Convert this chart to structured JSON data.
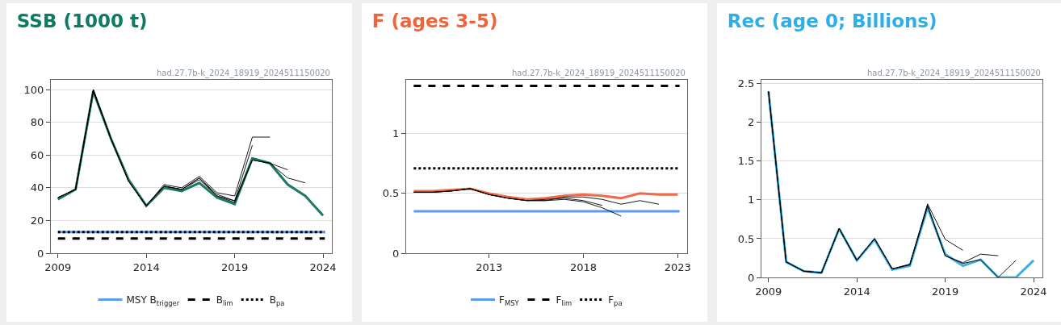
{
  "chart_data": [
    {
      "type": "line",
      "title": "SSB (1000 t)",
      "annotations": [
        "had.27.7b-k_2024_18919_2024511150020"
      ],
      "xlim": [
        2008.6,
        2024.5
      ],
      "xticks": [
        2009,
        2014,
        2019,
        2024
      ],
      "ylim": [
        0,
        106
      ],
      "yticks": [
        0,
        20,
        40,
        60,
        80,
        100
      ],
      "grid": "y",
      "legend": "bottom",
      "series": [
        {
          "color": "#1b7a66",
          "x": [
            2009,
            2010,
            2011,
            2012,
            2013,
            2014,
            2015,
            2016,
            2017,
            2018,
            2019,
            2020,
            2021,
            2022,
            2023,
            2024
          ],
          "values": [
            33,
            39,
            99,
            70,
            45,
            29,
            40,
            38,
            43,
            34,
            30,
            58,
            55,
            42,
            35,
            23
          ]
        },
        {
          "color": "#000000",
          "x": [
            2009,
            2010,
            2011,
            2012,
            2013,
            2014,
            2015,
            2016,
            2017,
            2018,
            2019,
            2020,
            2021,
            2022,
            2023
          ],
          "values": [
            34,
            39,
            99,
            70,
            44,
            29,
            41,
            39,
            45,
            35,
            31,
            57,
            55,
            46,
            43
          ]
        },
        {
          "color": "#000000",
          "x": [
            2009,
            2010,
            2011,
            2012,
            2013,
            2014,
            2015,
            2016,
            2017,
            2018,
            2019,
            2020,
            2021,
            2022
          ],
          "values": [
            34,
            39,
            100,
            70,
            44,
            29,
            41,
            39,
            46,
            35,
            32,
            57,
            55,
            51
          ]
        },
        {
          "color": "#000000",
          "x": [
            2009,
            2010,
            2011,
            2012,
            2013,
            2014,
            2015,
            2016,
            2017,
            2018,
            2019,
            2020,
            2021
          ],
          "values": [
            34,
            39,
            100,
            70,
            44,
            29,
            42,
            40,
            47,
            37,
            35,
            71,
            71
          ]
        },
        {
          "color": "#000000",
          "x": [
            2009,
            2010,
            2011,
            2012,
            2013,
            2014,
            2015,
            2016,
            2017,
            2018,
            2019,
            2020
          ],
          "values": [
            34,
            39,
            100,
            70,
            44,
            29,
            41,
            39,
            46,
            36,
            32,
            66
          ]
        }
      ],
      "ref_lines": [
        {
          "axis": "y",
          "value": 13,
          "label": "MSY B$_{trigger}$",
          "color": "#5b9bf0",
          "line_style": "solid"
        },
        {
          "axis": "y",
          "value": 9,
          "label": "B$_{lim}$",
          "color": "#000000",
          "line_style": "dashed"
        },
        {
          "axis": "y",
          "value": 13,
          "label": "B$_{pa}$",
          "color": "#000000",
          "line_style": "dotted"
        }
      ]
    },
    {
      "type": "line",
      "title": "F (ages 3-5)",
      "annotations": [
        "had.27.7b-k_2024_18919_2024511150020"
      ],
      "xlim": [
        2008.6,
        2023.5
      ],
      "xticks": [
        2013,
        2018,
        2023
      ],
      "ylim": [
        0,
        1.45
      ],
      "yticks": [
        0,
        0.5,
        1
      ],
      "grid": "y",
      "legend": "bottom",
      "series": [
        {
          "color": "#ee6a48",
          "x": [
            2009,
            2010,
            2011,
            2012,
            2013,
            2014,
            2015,
            2016,
            2017,
            2018,
            2019,
            2020,
            2021,
            2022,
            2023
          ],
          "values": [
            0.52,
            0.52,
            0.53,
            0.54,
            0.5,
            0.47,
            0.45,
            0.46,
            0.48,
            0.49,
            0.48,
            0.46,
            0.5,
            0.49,
            0.49
          ]
        },
        {
          "color": "#000000",
          "x": [
            2009,
            2010,
            2011,
            2012,
            2013,
            2014,
            2015,
            2016,
            2017,
            2018,
            2019,
            2020,
            2021,
            2022
          ],
          "values": [
            0.51,
            0.51,
            0.52,
            0.54,
            0.49,
            0.46,
            0.44,
            0.44,
            0.47,
            0.47,
            0.45,
            0.41,
            0.44,
            0.41
          ]
        },
        {
          "color": "#000000",
          "x": [
            2009,
            2010,
            2011,
            2012,
            2013,
            2014,
            2015,
            2016,
            2017,
            2018,
            2019,
            2020
          ],
          "values": [
            0.51,
            0.51,
            0.52,
            0.54,
            0.49,
            0.46,
            0.44,
            0.44,
            0.45,
            0.43,
            0.38,
            0.31
          ]
        },
        {
          "color": "#000000",
          "x": [
            2009,
            2010,
            2011,
            2012,
            2013,
            2014,
            2015,
            2016,
            2017,
            2018,
            2019
          ],
          "values": [
            0.51,
            0.51,
            0.52,
            0.54,
            0.49,
            0.46,
            0.44,
            0.45,
            0.46,
            0.44,
            0.4
          ]
        }
      ],
      "ref_lines": [
        {
          "axis": "y",
          "value": 0.35,
          "label": "F$_{MSY}$",
          "color": "#5b9bf0",
          "line_style": "solid"
        },
        {
          "axis": "y",
          "value": 1.4,
          "label": "F$_{lim}$",
          "color": "#000000",
          "line_style": "dashed"
        },
        {
          "axis": "y",
          "value": 0.71,
          "label": "F$_{pa}$",
          "color": "#000000",
          "line_style": "dotted"
        }
      ]
    },
    {
      "type": "line",
      "title": "Rec (age 0; Billions)",
      "annotations": [
        "had.27.7b-k_2024_18919_2024511150020"
      ],
      "xlim": [
        2008.6,
        2024.5
      ],
      "xticks": [
        2009,
        2014,
        2019,
        2024
      ],
      "ylim": [
        0,
        2.55
      ],
      "yticks": [
        0,
        0.5,
        1,
        1.5,
        2,
        2.5
      ],
      "grid": "y",
      "series": [
        {
          "color": "#3cb0e0",
          "x": [
            2009,
            2010,
            2011,
            2012,
            2013,
            2014,
            2015,
            2016,
            2017,
            2018,
            2019,
            2020,
            2021,
            2022,
            2023,
            2024
          ],
          "values": [
            2.4,
            0.2,
            0.08,
            0.06,
            0.63,
            0.22,
            0.49,
            0.1,
            0.15,
            0.9,
            0.3,
            0.15,
            0.23,
            0,
            0,
            0.22
          ]
        },
        {
          "color": "#000000",
          "x": [
            2009,
            2010,
            2011,
            2012,
            2013,
            2014,
            2015,
            2016,
            2017,
            2018,
            2019,
            2020,
            2021,
            2022,
            2023
          ],
          "values": [
            2.4,
            0.2,
            0.08,
            0.06,
            0.63,
            0.22,
            0.5,
            0.11,
            0.16,
            0.92,
            0.28,
            0.18,
            0.23,
            0,
            0.22
          ]
        },
        {
          "color": "#000000",
          "x": [
            2009,
            2010,
            2011,
            2012,
            2013,
            2014,
            2015,
            2016,
            2017,
            2018,
            2019,
            2020,
            2021,
            2022
          ],
          "values": [
            2.4,
            0.2,
            0.08,
            0.06,
            0.63,
            0.22,
            0.5,
            0.11,
            0.17,
            0.93,
            0.28,
            0.19,
            0.3,
            0.28
          ]
        },
        {
          "color": "#000000",
          "x": [
            2009,
            2010,
            2011,
            2012,
            2013,
            2014,
            2015,
            2016,
            2017,
            2018,
            2019,
            2020
          ],
          "values": [
            2.4,
            0.2,
            0.08,
            0.06,
            0.63,
            0.22,
            0.5,
            0.11,
            0.17,
            0.95,
            0.49,
            0.35
          ]
        }
      ]
    }
  ]
}
